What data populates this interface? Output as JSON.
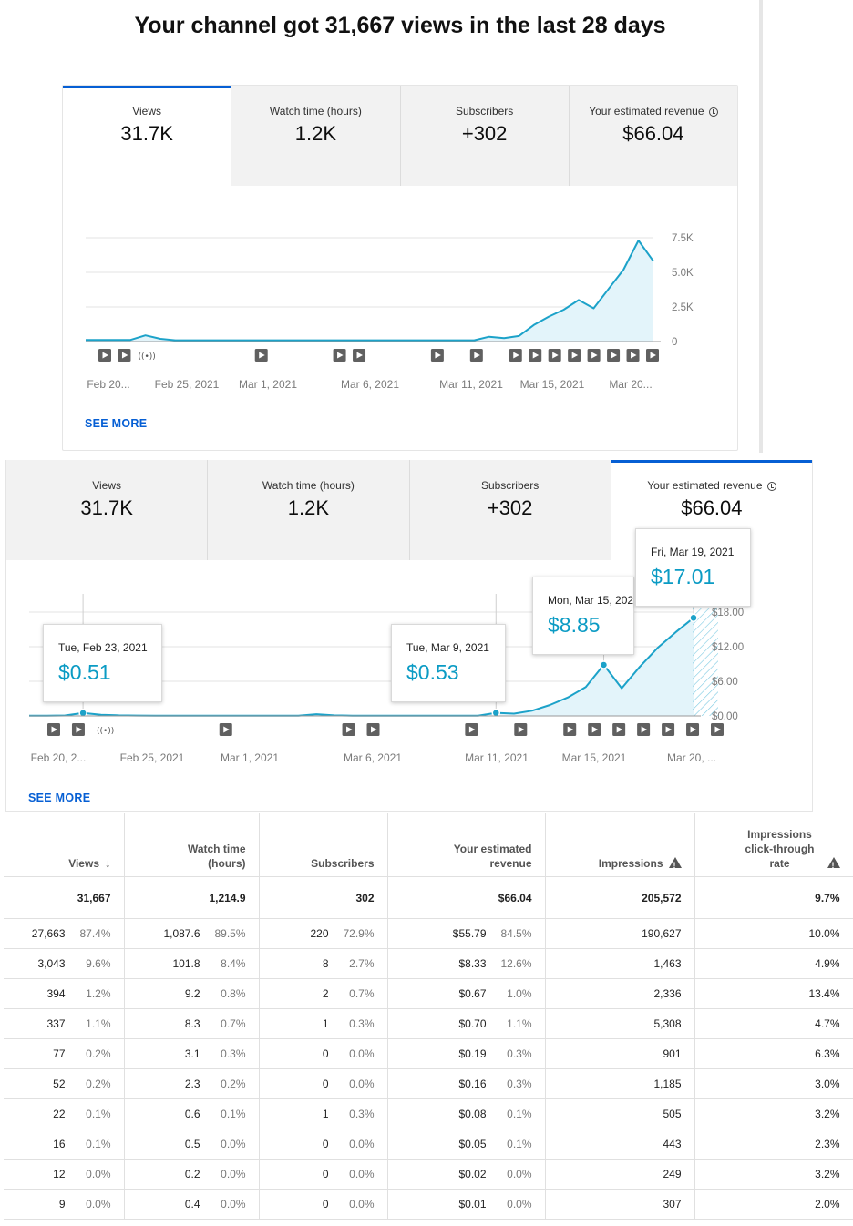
{
  "headline": "Your channel got 31,667 views in the last 28 days",
  "colors": {
    "line": "#1ca2c9",
    "fill": "#e3f4fa",
    "accent": "#065fd4",
    "tip_value": "#0b9bc4"
  },
  "icons": {
    "video": "play-square-icon",
    "live": "live-broadcast-icon",
    "clock": "clock-icon",
    "sort": "arrow-down-icon",
    "warning": "warning-triangle-icon"
  },
  "tabs": [
    {
      "label": "Views",
      "value": "31.7K"
    },
    {
      "label": "Watch time (hours)",
      "value": "1.2K"
    },
    {
      "label": "Subscribers",
      "value": "+302"
    },
    {
      "label": "Your estimated revenue",
      "value": "$66.04"
    }
  ],
  "see_more": "SEE MORE",
  "chart_data": [
    {
      "type": "area",
      "series": [
        {
          "values": [
            120,
            120,
            120,
            120,
            450,
            200,
            90,
            90,
            90,
            90,
            90,
            90,
            90,
            90,
            90,
            90,
            90,
            90,
            90,
            90,
            90,
            90,
            90,
            90,
            90,
            90,
            90,
            350,
            250,
            400,
            1200,
            1800,
            2300,
            3000,
            2400,
            3800,
            5200,
            7300,
            5800
          ]
        }
      ],
      "x_tick_labels": [
        "Feb 20...",
        "Feb 25, 2021",
        "Mar 1, 2021",
        "Mar 6, 2021",
        "Mar 11, 2021",
        "Mar 15, 2021",
        "Mar 20..."
      ],
      "y_tick_labels": [
        "7.5K",
        "5.0K",
        "2.5K",
        "0"
      ],
      "ylim": [
        0,
        7500
      ],
      "grid": true
    },
    {
      "type": "area",
      "series": [
        {
          "values": [
            0.05,
            0.05,
            0.08,
            0.51,
            0.2,
            0.1,
            0.06,
            0.05,
            0.05,
            0.05,
            0.05,
            0.05,
            0.05,
            0.05,
            0.05,
            0.05,
            0.3,
            0.1,
            0.05,
            0.05,
            0.05,
            0.05,
            0.05,
            0.05,
            0.05,
            0.05,
            0.53,
            0.4,
            0.9,
            1.9,
            3.2,
            5.0,
            8.85,
            4.8,
            8.5,
            11.8,
            14.5,
            17.01
          ]
        }
      ],
      "x_tick_labels": [
        "Feb 20, 2...",
        "Feb 25, 2021",
        "Mar 1, 2021",
        "Mar 6, 2021",
        "Mar 11, 2021",
        "Mar 15, 2021",
        "Mar 20, ..."
      ],
      "y_tick_labels": [
        "$18.00",
        "$12.00",
        "$6.00",
        "$0.00"
      ],
      "ylim": [
        0,
        18
      ],
      "grid": true,
      "tooltips": [
        {
          "date": "Tue, Feb 23, 2021",
          "value": "$0.51"
        },
        {
          "date": "Tue, Mar 9, 2021",
          "value": "$0.53"
        },
        {
          "date": "Mon, Mar 15, 2021",
          "value": "$8.85"
        },
        {
          "date": "Fri, Mar 19, 2021",
          "value": "$17.01"
        }
      ]
    }
  ],
  "table": {
    "headers": [
      "Views",
      "Watch time (hours)",
      "Subscribers",
      "Your estimated revenue",
      "Impressions",
      "Impressions click-through rate"
    ],
    "total": [
      "31,667",
      "1,214.9",
      "302",
      "$66.04",
      "205,572",
      "9.7%"
    ],
    "rows": [
      [
        "27,663",
        "87.4%",
        "1,087.6",
        "89.5%",
        "220",
        "72.9%",
        "$55.79",
        "84.5%",
        "190,627",
        "10.0%"
      ],
      [
        "3,043",
        "9.6%",
        "101.8",
        "8.4%",
        "8",
        "2.7%",
        "$8.33",
        "12.6%",
        "1,463",
        "4.9%"
      ],
      [
        "394",
        "1.2%",
        "9.2",
        "0.8%",
        "2",
        "0.7%",
        "$0.67",
        "1.0%",
        "2,336",
        "13.4%"
      ],
      [
        "337",
        "1.1%",
        "8.3",
        "0.7%",
        "1",
        "0.3%",
        "$0.70",
        "1.1%",
        "5,308",
        "4.7%"
      ],
      [
        "77",
        "0.2%",
        "3.1",
        "0.3%",
        "0",
        "0.0%",
        "$0.19",
        "0.3%",
        "901",
        "6.3%"
      ],
      [
        "52",
        "0.2%",
        "2.3",
        "0.2%",
        "0",
        "0.0%",
        "$0.16",
        "0.3%",
        "1,185",
        "3.0%"
      ],
      [
        "22",
        "0.1%",
        "0.6",
        "0.1%",
        "1",
        "0.3%",
        "$0.08",
        "0.1%",
        "505",
        "3.2%"
      ],
      [
        "16",
        "0.1%",
        "0.5",
        "0.0%",
        "0",
        "0.0%",
        "$0.05",
        "0.1%",
        "443",
        "2.3%"
      ],
      [
        "12",
        "0.0%",
        "0.2",
        "0.0%",
        "0",
        "0.0%",
        "$0.02",
        "0.0%",
        "249",
        "3.2%"
      ],
      [
        "9",
        "0.0%",
        "0.4",
        "0.0%",
        "0",
        "0.0%",
        "$0.01",
        "0.0%",
        "307",
        "2.0%"
      ]
    ]
  }
}
